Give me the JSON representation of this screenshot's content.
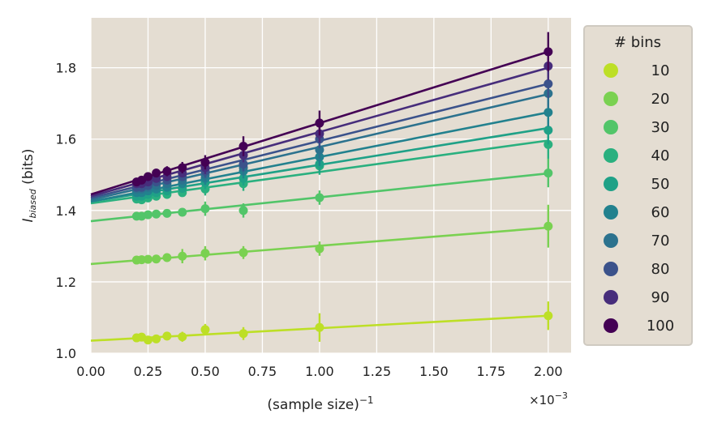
{
  "chart_data": {
    "type": "line",
    "x_multiplier_label": "×10",
    "x_multiplier_exp": "−3",
    "xlabel": {
      "base": "(sample size)",
      "sup": "−1"
    },
    "ylabel": {
      "main": "I",
      "sub": "biased",
      "tail": " (bits)"
    },
    "xlim": [
      0.0,
      2.1
    ],
    "ylim": [
      1.0,
      1.94
    ],
    "xticks": [
      0.0,
      0.25,
      0.5,
      0.75,
      1.0,
      1.25,
      1.5,
      1.75,
      2.0
    ],
    "xtick_labels": [
      "0.00",
      "0.25",
      "0.50",
      "0.75",
      "1.00",
      "1.25",
      "1.50",
      "1.75",
      "2.00"
    ],
    "yticks": [
      1.0,
      1.2,
      1.4,
      1.6,
      1.8
    ],
    "ytick_labels": [
      "1.0",
      "1.2",
      "1.4",
      "1.6",
      "1.8"
    ],
    "grid": true,
    "legend": {
      "title": "# bins",
      "placement": "right-outside"
    },
    "x": [
      0.2,
      0.222,
      0.25,
      0.286,
      0.333,
      0.4,
      0.5,
      0.667,
      1.0,
      2.0
    ],
    "series": [
      {
        "name": "10",
        "color": "#bddf26",
        "intercept": 1.035,
        "slope": 0.035,
        "values": [
          1.043,
          1.045,
          1.037,
          1.04,
          1.048,
          1.046,
          1.066,
          1.055,
          1.072,
          1.105
        ],
        "errors": [
          0.01,
          0.01,
          0.01,
          0.01,
          0.012,
          0.014,
          0.016,
          0.018,
          0.04,
          0.04
        ]
      },
      {
        "name": "20",
        "color": "#7ad151",
        "intercept": 1.25,
        "slope": 0.051,
        "values": [
          1.261,
          1.262,
          1.263,
          1.264,
          1.268,
          1.272,
          1.28,
          1.282,
          1.293,
          1.356
        ],
        "errors": [
          0.008,
          0.008,
          0.008,
          0.01,
          0.012,
          0.02,
          0.02,
          0.018,
          0.02,
          0.06
        ]
      },
      {
        "name": "30",
        "color": "#52c569",
        "intercept": 1.37,
        "slope": 0.067,
        "values": [
          1.384,
          1.384,
          1.388,
          1.39,
          1.392,
          1.395,
          1.405,
          1.4,
          1.436,
          1.505
        ],
        "errors": [
          0.006,
          0.006,
          0.006,
          0.008,
          0.01,
          0.01,
          0.02,
          0.02,
          0.02,
          0.04
        ]
      },
      {
        "name": "40",
        "color": "#2ab07f",
        "intercept": 1.42,
        "slope": 0.088,
        "values": [
          1.432,
          1.43,
          1.435,
          1.44,
          1.445,
          1.45,
          1.46,
          1.475,
          1.525,
          1.585
        ],
        "errors": [
          0.008,
          0.008,
          0.01,
          0.01,
          0.012,
          0.012,
          0.018,
          0.02,
          0.025,
          0.04
        ]
      },
      {
        "name": "50",
        "color": "#1fa187",
        "intercept": 1.425,
        "slope": 0.103,
        "values": [
          1.44,
          1.44,
          1.445,
          1.45,
          1.455,
          1.462,
          1.478,
          1.49,
          1.53,
          1.625
        ],
        "errors": [
          0.008,
          0.008,
          0.01,
          0.01,
          0.012,
          0.012,
          0.018,
          0.02,
          0.025,
          0.04
        ]
      },
      {
        "name": "60",
        "color": "#22818e",
        "intercept": 1.425,
        "slope": 0.125,
        "values": [
          1.45,
          1.45,
          1.455,
          1.46,
          1.465,
          1.475,
          1.49,
          1.51,
          1.55,
          1.675
        ],
        "errors": [
          0.008,
          0.008,
          0.01,
          0.01,
          0.012,
          0.012,
          0.018,
          0.02,
          0.025,
          0.04
        ]
      },
      {
        "name": "70",
        "color": "#2c728e",
        "intercept": 1.43,
        "slope": 0.148,
        "values": [
          1.46,
          1.46,
          1.465,
          1.47,
          1.475,
          1.485,
          1.5,
          1.52,
          1.57,
          1.728
        ],
        "errors": [
          0.008,
          0.008,
          0.01,
          0.01,
          0.012,
          0.012,
          0.018,
          0.02,
          0.025,
          0.04
        ]
      },
      {
        "name": "80",
        "color": "#3b528b",
        "intercept": 1.435,
        "slope": 0.16,
        "values": [
          1.465,
          1.465,
          1.47,
          1.48,
          1.485,
          1.495,
          1.51,
          1.53,
          1.6,
          1.755
        ],
        "errors": [
          0.008,
          0.008,
          0.01,
          0.01,
          0.012,
          0.012,
          0.018,
          0.02,
          0.025,
          0.04
        ]
      },
      {
        "name": "90",
        "color": "#472d7b",
        "intercept": 1.44,
        "slope": 0.18,
        "values": [
          1.475,
          1.475,
          1.48,
          1.49,
          1.495,
          1.505,
          1.52,
          1.555,
          1.615,
          1.805
        ],
        "errors": [
          0.008,
          0.008,
          0.01,
          0.01,
          0.012,
          0.012,
          0.018,
          0.02,
          0.025,
          0.04
        ]
      },
      {
        "name": "100",
        "color": "#440154",
        "intercept": 1.445,
        "slope": 0.2,
        "values": [
          1.48,
          1.485,
          1.495,
          1.505,
          1.51,
          1.52,
          1.535,
          1.58,
          1.645,
          1.845
        ],
        "errors": [
          0.01,
          0.01,
          0.012,
          0.012,
          0.014,
          0.016,
          0.02,
          0.028,
          0.035,
          0.055
        ]
      }
    ]
  }
}
